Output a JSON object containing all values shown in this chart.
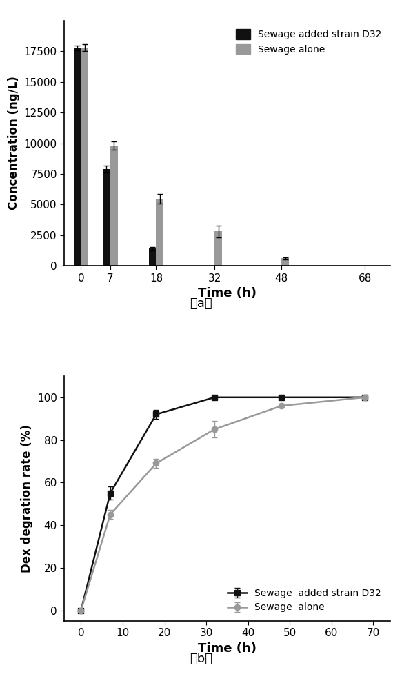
{
  "bar_times": [
    0,
    7,
    18,
    32,
    48,
    68
  ],
  "bar_black": [
    17800,
    7900,
    1400,
    0,
    0,
    0
  ],
  "bar_gray": [
    17800,
    9800,
    5450,
    2800,
    600,
    0
  ],
  "bar_black_err": [
    200,
    300,
    150,
    0,
    0,
    0
  ],
  "bar_gray_err": [
    300,
    350,
    400,
    500,
    100,
    0
  ],
  "bar_width": 1.8,
  "bar_ylabel": "Concentration (ng/L)",
  "bar_xlabel": "Time (h)",
  "bar_ylim": [
    0,
    20000
  ],
  "bar_yticks": [
    0,
    2500,
    5000,
    7500,
    10000,
    12500,
    15000,
    17500
  ],
  "bar_xticks": [
    0,
    7,
    18,
    32,
    48,
    68
  ],
  "bar_legend1": "Sewage added strain D32",
  "bar_legend2": "Sewage alone",
  "line_times": [
    0,
    7,
    18,
    32,
    48,
    68
  ],
  "line_black": [
    0,
    55,
    92,
    100,
    100,
    100
  ],
  "line_gray": [
    0,
    45,
    69,
    85,
    96,
    100
  ],
  "line_black_err": [
    0,
    3,
    2,
    1,
    0,
    0
  ],
  "line_gray_err": [
    0,
    2,
    2,
    4,
    1,
    0
  ],
  "line_ylabel": "Dex degration rate (%)",
  "line_xlabel": "Time (h)",
  "line_ylim": [
    -5,
    110
  ],
  "line_yticks": [
    0,
    20,
    40,
    60,
    80,
    100
  ],
  "line_xticks": [
    0,
    10,
    20,
    30,
    40,
    50,
    60,
    70
  ],
  "line_legend1": "Sewage  added strain D32",
  "line_legend2": "Sewage  alone",
  "black_color": "#111111",
  "gray_color": "#999999",
  "label_a": "（a）",
  "label_b": "（b）",
  "background_color": "#ffffff"
}
